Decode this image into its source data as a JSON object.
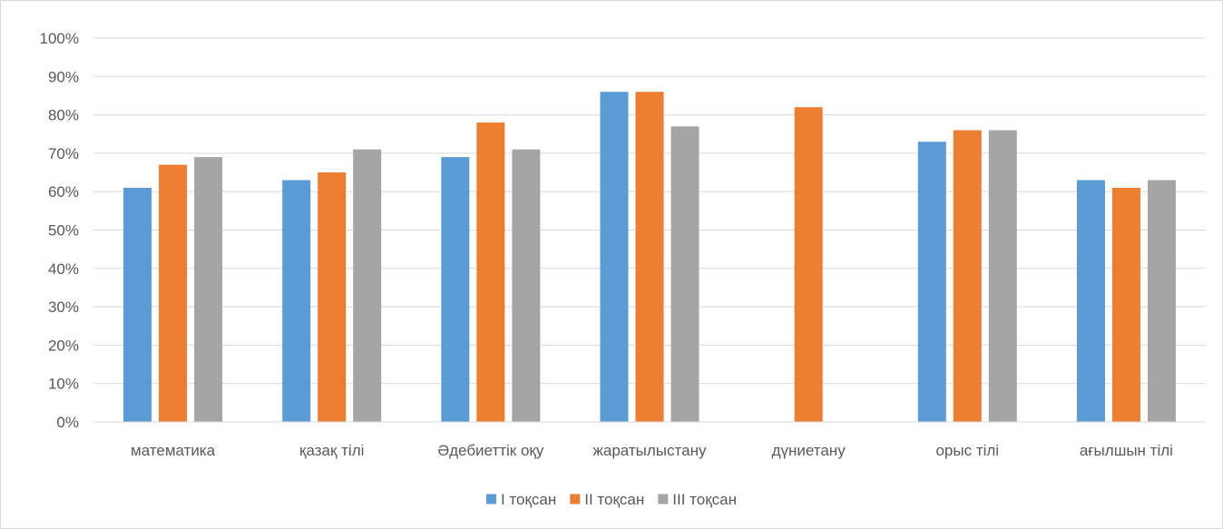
{
  "chart_data": {
    "type": "bar",
    "categories": [
      "математика",
      "қазақ тілі",
      "Әдебиеттік оқу",
      "жаратылыстану",
      "дүниетану",
      "орыс тілі",
      "ағылшын тілі"
    ],
    "series": [
      {
        "name": "I тоқсан",
        "color": "#5b9bd5",
        "values": [
          61,
          63,
          69,
          86,
          null,
          73,
          63
        ]
      },
      {
        "name": "II тоқсан",
        "color": "#ed7d31",
        "values": [
          67,
          65,
          78,
          86,
          82,
          76,
          61
        ]
      },
      {
        "name": "III тоқсан",
        "color": "#a5a5a5",
        "values": [
          69,
          71,
          71,
          77,
          null,
          76,
          63
        ]
      }
    ],
    "y_ticks": [
      "0%",
      "10%",
      "20%",
      "30%",
      "40%",
      "50%",
      "60%",
      "70%",
      "80%",
      "90%",
      "100%"
    ],
    "ylim": [
      0,
      100
    ],
    "grid": true,
    "legend_position": "bottom",
    "title": "",
    "xlabel": "",
    "ylabel": ""
  }
}
